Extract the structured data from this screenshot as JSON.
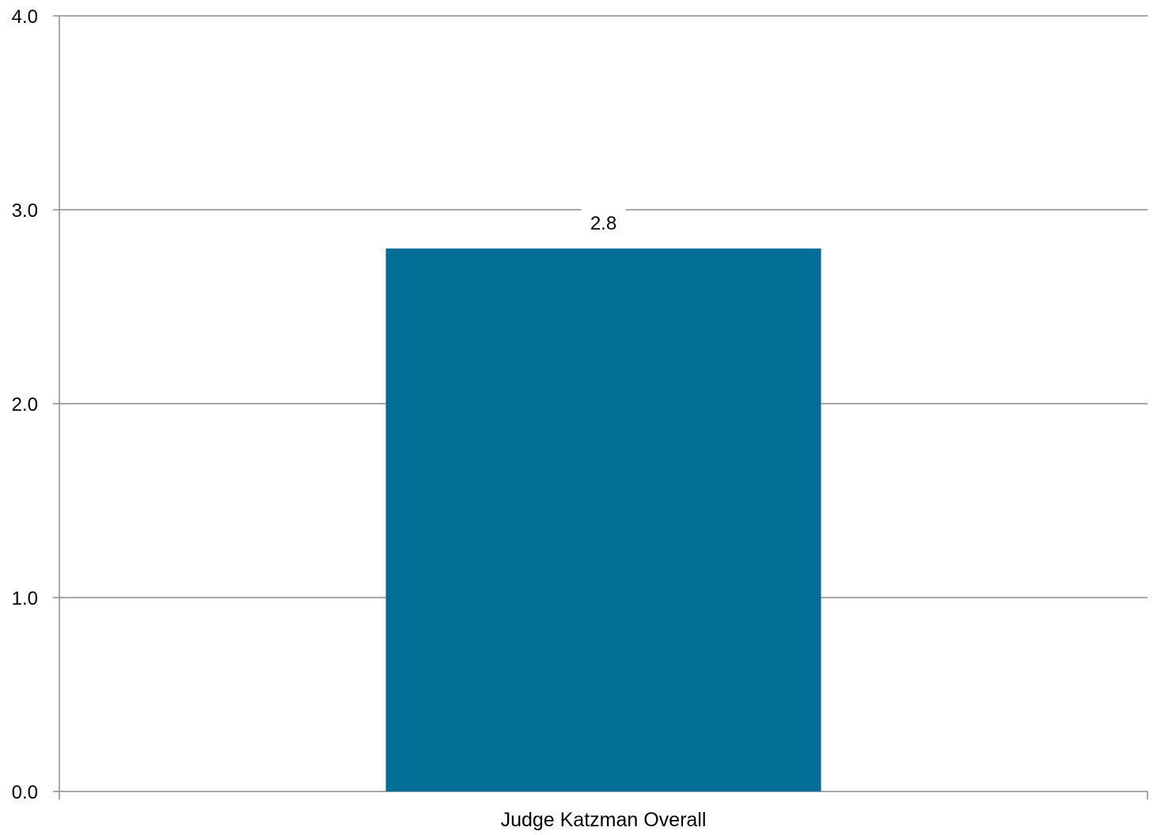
{
  "chart_data": {
    "type": "bar",
    "categories": [
      "Judge Katzman Overall"
    ],
    "values": [
      2.8
    ],
    "data_labels": [
      "2.8"
    ],
    "title": "",
    "xlabel": "",
    "ylabel": "",
    "ylim": [
      0,
      4
    ],
    "y_ticks": [
      "0.0",
      "1.0",
      "2.0",
      "3.0",
      "4.0"
    ],
    "grid": true,
    "legend": "none",
    "colors": {
      "bar": "#046f96",
      "grid": "#8c8c8c",
      "axis": "#8c8c8c"
    }
  }
}
